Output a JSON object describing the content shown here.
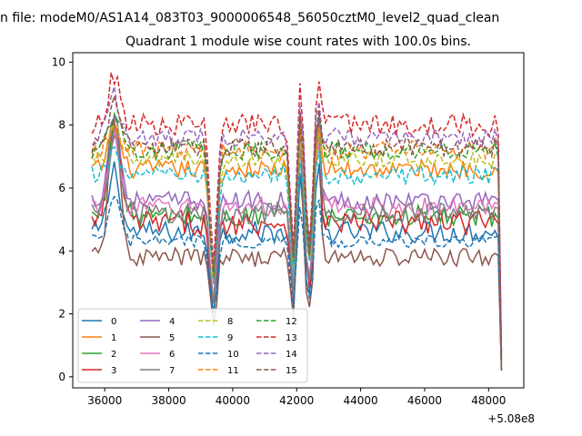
{
  "figure": {
    "suptitle": "n file: modeM0/AS1A14_083T03_9000006548_56050cztM0_level2_quad_clean"
  },
  "chart_data": {
    "type": "line",
    "title": "Quadrant 1 module wise count rates with 100.0s bins.",
    "xlabel": "",
    "ylabel": "",
    "x_offset_label": "+5.08e8",
    "xlim": [
      35000,
      49100
    ],
    "ylim": [
      -0.35,
      10.3
    ],
    "xticks": [
      36000,
      38000,
      40000,
      42000,
      44000,
      46000,
      48000
    ],
    "xtick_labels": [
      "36000",
      "38000",
      "40000",
      "42000",
      "44000",
      "46000",
      "48000"
    ],
    "yticks": [
      0,
      2,
      4,
      6,
      8,
      10
    ],
    "ytick_labels": [
      "0",
      "2",
      "4",
      "6",
      "8",
      "10"
    ],
    "grid": false,
    "legend": {
      "placement": "lower-left",
      "columns": 4
    },
    "x_range": [
      35600,
      48450
    ],
    "x_step": 100,
    "notes_visible": "",
    "series": [
      {
        "name": "0",
        "color": "#1f77b4",
        "dash": "solid",
        "base": 4.6,
        "noise": 0.35,
        "peak": 7.0
      },
      {
        "name": "1",
        "color": "#ff7f0e",
        "dash": "solid",
        "base": 6.6,
        "noise": 0.3,
        "peak": 8.2
      },
      {
        "name": "2",
        "color": "#2ca02c",
        "dash": "solid",
        "base": 5.1,
        "noise": 0.35,
        "peak": 8.9
      },
      {
        "name": "3",
        "color": "#d62728",
        "dash": "solid",
        "base": 4.9,
        "noise": 0.4,
        "peak": 8.8
      },
      {
        "name": "4",
        "color": "#9467bd",
        "dash": "solid",
        "base": 5.6,
        "noise": 0.3,
        "peak": 8.9
      },
      {
        "name": "5",
        "color": "#8c564b",
        "dash": "solid",
        "base": 3.8,
        "noise": 0.3,
        "peak": 8.6
      },
      {
        "name": "6",
        "color": "#e377c2",
        "dash": "solid",
        "base": 5.4,
        "noise": 0.3,
        "peak": 8.0
      },
      {
        "name": "7",
        "color": "#7f7f7f",
        "dash": "solid",
        "base": 5.2,
        "noise": 0.35,
        "peak": 8.3
      },
      {
        "name": "8",
        "color": "#bcbd22",
        "dash": "dashed",
        "base": 6.9,
        "noise": 0.3,
        "peak": 8.0
      },
      {
        "name": "9",
        "color": "#17becf",
        "dash": "dashed",
        "base": 6.4,
        "noise": 0.3,
        "peak": 7.4
      },
      {
        "name": "10",
        "color": "#1f77b4",
        "dash": "dashed",
        "base": 4.3,
        "noise": 0.2,
        "peak": 6.0
      },
      {
        "name": "11",
        "color": "#ff7f0e",
        "dash": "dashed",
        "base": 7.2,
        "noise": 0.3,
        "peak": 8.2
      },
      {
        "name": "12",
        "color": "#2ca02c",
        "dash": "dashed",
        "base": 7.2,
        "noise": 0.3,
        "peak": 8.6
      },
      {
        "name": "13",
        "color": "#d62728",
        "dash": "dashed",
        "base": 8.0,
        "noise": 0.35,
        "peak": 9.9
      },
      {
        "name": "14",
        "color": "#9467bd",
        "dash": "dashed",
        "base": 7.6,
        "noise": 0.3,
        "peak": 9.2
      },
      {
        "name": "15",
        "color": "#8c564b",
        "dash": "dashed",
        "base": 7.3,
        "noise": 0.3,
        "peak": 9.0
      }
    ]
  }
}
